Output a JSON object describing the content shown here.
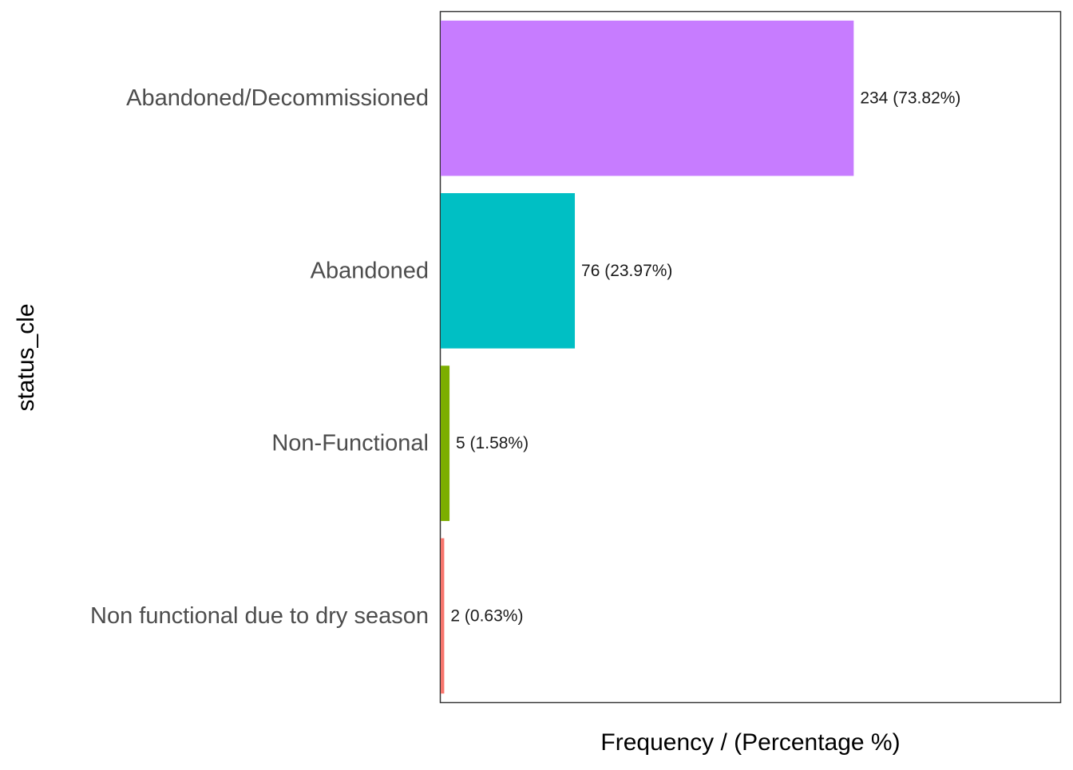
{
  "chart_data": {
    "type": "bar",
    "orientation": "horizontal",
    "title": "",
    "xlabel": "Frequency / (Percentage %)",
    "ylabel": "status_cle",
    "categories": [
      "Abandoned/Decommissioned",
      "Abandoned",
      "Non-Functional",
      "Non functional due to dry season"
    ],
    "values": [
      234,
      76,
      5,
      2
    ],
    "data_labels": [
      "234 (73.82%)",
      "76 (23.97%)",
      "5 (1.58%)",
      "2 (0.63%)"
    ],
    "colors": [
      "#C77CFF",
      "#00BFC4",
      "#7CAE00",
      "#F8766D"
    ],
    "xlim": [
      0,
      351
    ],
    "grid": false,
    "x_ticks_shown": false,
    "legend": "none"
  }
}
